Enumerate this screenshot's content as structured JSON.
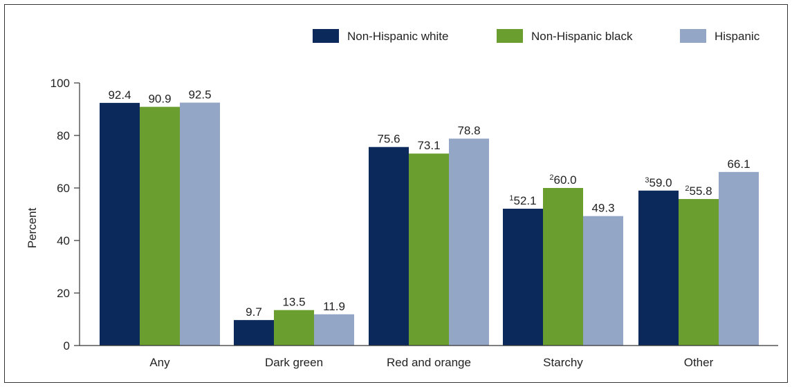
{
  "chart_data": {
    "type": "bar",
    "ylabel": "Percent",
    "ylim": [
      0,
      100
    ],
    "yticks": [
      "0",
      "20",
      "40",
      "60",
      "80",
      "100"
    ],
    "categories": [
      "Any",
      "Dark green",
      "Red and orange",
      "Starchy",
      "Other"
    ],
    "series": [
      {
        "name": "Non-Hispanic white",
        "color": "#0b2a5b",
        "values": [
          92.4,
          9.7,
          75.6,
          52.1,
          59.0
        ],
        "labels": [
          "92.4",
          "9.7",
          "75.6",
          "52.1",
          "59.0"
        ],
        "notes": [
          "",
          "",
          "",
          "1",
          "3"
        ]
      },
      {
        "name": "Non-Hispanic black",
        "color": "#6a9e2f",
        "values": [
          90.9,
          13.5,
          73.1,
          60.0,
          55.8
        ],
        "labels": [
          "90.9",
          "13.5",
          "73.1",
          "60.0",
          "55.8"
        ],
        "notes": [
          "",
          "",
          "",
          "2",
          "2"
        ]
      },
      {
        "name": "Hispanic",
        "color": "#94a6c6",
        "values": [
          92.5,
          11.9,
          78.8,
          49.3,
          66.1
        ],
        "labels": [
          "92.5",
          "11.9",
          "78.8",
          "49.3",
          "66.1"
        ],
        "notes": [
          "",
          "",
          "",
          "",
          ""
        ]
      }
    ],
    "legend_position": "top-right",
    "grid": false
  }
}
